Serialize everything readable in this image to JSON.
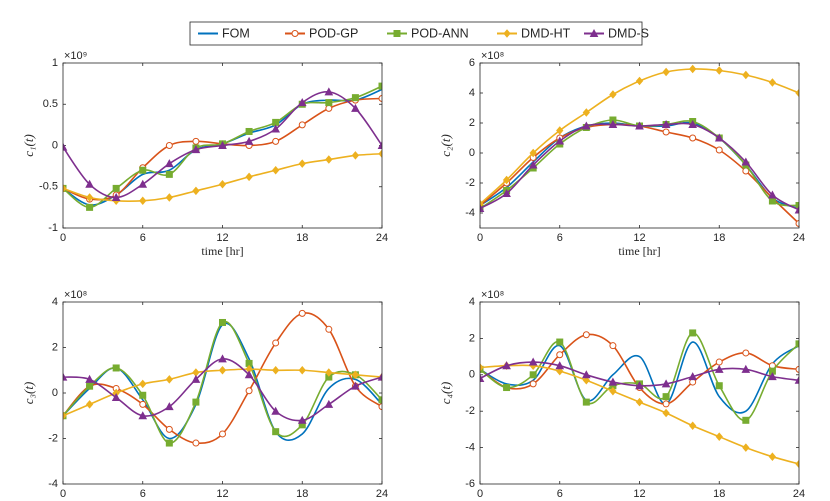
{
  "chart_data": [
    {
      "type": "line",
      "ylabel": "c₁(t)",
      "xlabel": "time [hr]",
      "y_multiplier": "×10⁹",
      "x": [
        0,
        2,
        4,
        6,
        8,
        10,
        12,
        14,
        16,
        18,
        20,
        22,
        24
      ],
      "xlim": [
        0,
        24
      ],
      "xticks": [
        0,
        6,
        12,
        18,
        24
      ],
      "ylim": [
        -1,
        1
      ],
      "yticks": [
        -1,
        -0.5,
        0,
        0.5,
        1
      ],
      "series": [
        {
          "name": "FOM",
          "color": "#0072BD",
          "marker": "none",
          "values": [
            -0.52,
            -0.72,
            -0.6,
            -0.35,
            -0.3,
            -0.05,
            0.02,
            0.15,
            0.25,
            0.5,
            0.55,
            0.55,
            0.68
          ]
        },
        {
          "name": "POD-GP",
          "color": "#D95319",
          "marker": "circle",
          "values": [
            -0.52,
            -0.65,
            -0.6,
            -0.27,
            0.0,
            0.05,
            0.02,
            0.0,
            0.05,
            0.25,
            0.45,
            0.55,
            0.57
          ]
        },
        {
          "name": "POD-ANN",
          "color": "#77AC30",
          "marker": "square",
          "values": [
            -0.52,
            -0.75,
            -0.52,
            -0.3,
            -0.35,
            -0.03,
            0.02,
            0.17,
            0.28,
            0.5,
            0.52,
            0.58,
            0.72
          ]
        },
        {
          "name": "DMD-HT",
          "color": "#EDB120",
          "marker": "diamond",
          "values": [
            -0.52,
            -0.63,
            -0.67,
            -0.67,
            -0.63,
            -0.55,
            -0.47,
            -0.38,
            -0.3,
            -0.22,
            -0.17,
            -0.12,
            -0.1
          ]
        },
        {
          "name": "DMD-S",
          "color": "#7E2F8E",
          "marker": "triangle",
          "values": [
            -0.02,
            -0.47,
            -0.63,
            -0.47,
            -0.22,
            -0.05,
            0.0,
            0.05,
            0.2,
            0.52,
            0.65,
            0.45,
            0.0
          ]
        }
      ]
    },
    {
      "type": "line",
      "ylabel": "c₂(t)",
      "xlabel": "time [hr]",
      "y_multiplier": "×10⁸",
      "x": [
        0,
        2,
        4,
        6,
        8,
        10,
        12,
        14,
        16,
        18,
        20,
        22,
        24
      ],
      "xlim": [
        0,
        24
      ],
      "xticks": [
        0,
        6,
        12,
        18,
        24
      ],
      "ylim": [
        -5,
        6
      ],
      "yticks": [
        -4,
        -2,
        0,
        2,
        4,
        6
      ],
      "series": [
        {
          "values": [
            -3.5,
            -2.3,
            -0.6,
            1.0,
            1.8,
            2.0,
            1.8,
            1.8,
            2.0,
            1.0,
            -0.8,
            -3.0,
            -3.7
          ]
        },
        {
          "values": [
            -3.5,
            -2.0,
            -0.3,
            1.0,
            1.7,
            1.9,
            1.8,
            1.4,
            1.0,
            0.2,
            -1.2,
            -3.0,
            -4.7
          ]
        },
        {
          "values": [
            -3.7,
            -2.5,
            -1.0,
            0.6,
            1.7,
            2.2,
            1.8,
            1.9,
            2.1,
            1.0,
            -0.8,
            -3.2,
            -3.5
          ]
        },
        {
          "values": [
            -3.4,
            -1.8,
            0.0,
            1.5,
            2.7,
            3.9,
            4.8,
            5.4,
            5.6,
            5.5,
            5.2,
            4.7,
            4.0
          ]
        },
        {
          "values": [
            -3.7,
            -2.7,
            -0.8,
            0.8,
            1.8,
            1.9,
            1.8,
            1.9,
            1.9,
            1.0,
            -0.6,
            -2.8,
            -3.8
          ]
        }
      ]
    },
    {
      "type": "line",
      "ylabel": "c₃(t)",
      "xlabel": "time [hr]",
      "y_multiplier": "×10⁸",
      "x": [
        0,
        2,
        4,
        6,
        8,
        10,
        12,
        14,
        16,
        18,
        20,
        22,
        24
      ],
      "xlim": [
        0,
        24
      ],
      "xticks": [
        0,
        6,
        12,
        18,
        24
      ],
      "ylim": [
        -4,
        4
      ],
      "yticks": [
        -4,
        -2,
        0,
        2,
        4
      ],
      "series": [
        {
          "values": [
            -1.0,
            0.2,
            1.1,
            -0.3,
            -2.0,
            -0.5,
            3.0,
            1.5,
            -1.7,
            -1.8,
            0.2,
            0.6,
            -0.5
          ]
        },
        {
          "values": [
            -1.0,
            0.3,
            0.2,
            -0.5,
            -1.6,
            -2.2,
            -1.8,
            0.1,
            2.2,
            3.5,
            2.8,
            0.3,
            -0.6
          ]
        },
        {
          "values": [
            -1.0,
            0.3,
            1.1,
            -0.1,
            -2.2,
            -0.4,
            3.1,
            1.3,
            -1.7,
            -1.4,
            0.7,
            0.8,
            -0.3
          ]
        },
        {
          "values": [
            -1.0,
            -0.5,
            0.0,
            0.4,
            0.6,
            0.9,
            1.0,
            1.05,
            1.0,
            1.0,
            0.9,
            0.8,
            0.7
          ]
        },
        {
          "values": [
            0.7,
            0.6,
            -0.2,
            -1.0,
            -0.6,
            0.6,
            1.5,
            0.8,
            -0.8,
            -1.2,
            -0.5,
            0.3,
            0.7
          ]
        }
      ]
    },
    {
      "type": "line",
      "ylabel": "c₄(t)",
      "xlabel": "time [hr]",
      "y_multiplier": "×10⁸",
      "x": [
        0,
        2,
        4,
        6,
        8,
        10,
        12,
        14,
        16,
        18,
        20,
        22,
        24
      ],
      "xlim": [
        0,
        24
      ],
      "xticks": [
        0,
        6,
        12,
        18,
        24
      ],
      "ylim": [
        -6,
        4
      ],
      "yticks": [
        -6,
        -4,
        -2,
        0,
        2,
        4
      ],
      "series": [
        {
          "values": [
            0.3,
            -0.5,
            -0.3,
            1.6,
            -1.4,
            0.0,
            1.0,
            -1.6,
            1.8,
            -1.2,
            -2.0,
            0.6,
            1.6
          ]
        },
        {
          "values": [
            0.3,
            -0.7,
            -0.5,
            1.1,
            2.2,
            1.6,
            -0.7,
            -1.6,
            -0.4,
            0.7,
            1.2,
            0.5,
            0.3
          ]
        },
        {
          "values": [
            0.3,
            -0.7,
            0.0,
            1.8,
            -1.5,
            -0.6,
            -0.5,
            -1.2,
            2.3,
            -0.6,
            -2.5,
            0.2,
            1.7
          ]
        },
        {
          "values": [
            0.4,
            0.5,
            0.5,
            0.2,
            -0.3,
            -0.9,
            -1.5,
            -2.1,
            -2.8,
            -3.4,
            -4.0,
            -4.5,
            -4.9
          ]
        },
        {
          "values": [
            -0.2,
            0.5,
            0.7,
            0.5,
            0.0,
            -0.4,
            -0.6,
            -0.5,
            -0.1,
            0.3,
            0.3,
            -0.1,
            -0.3
          ]
        }
      ]
    }
  ]
}
